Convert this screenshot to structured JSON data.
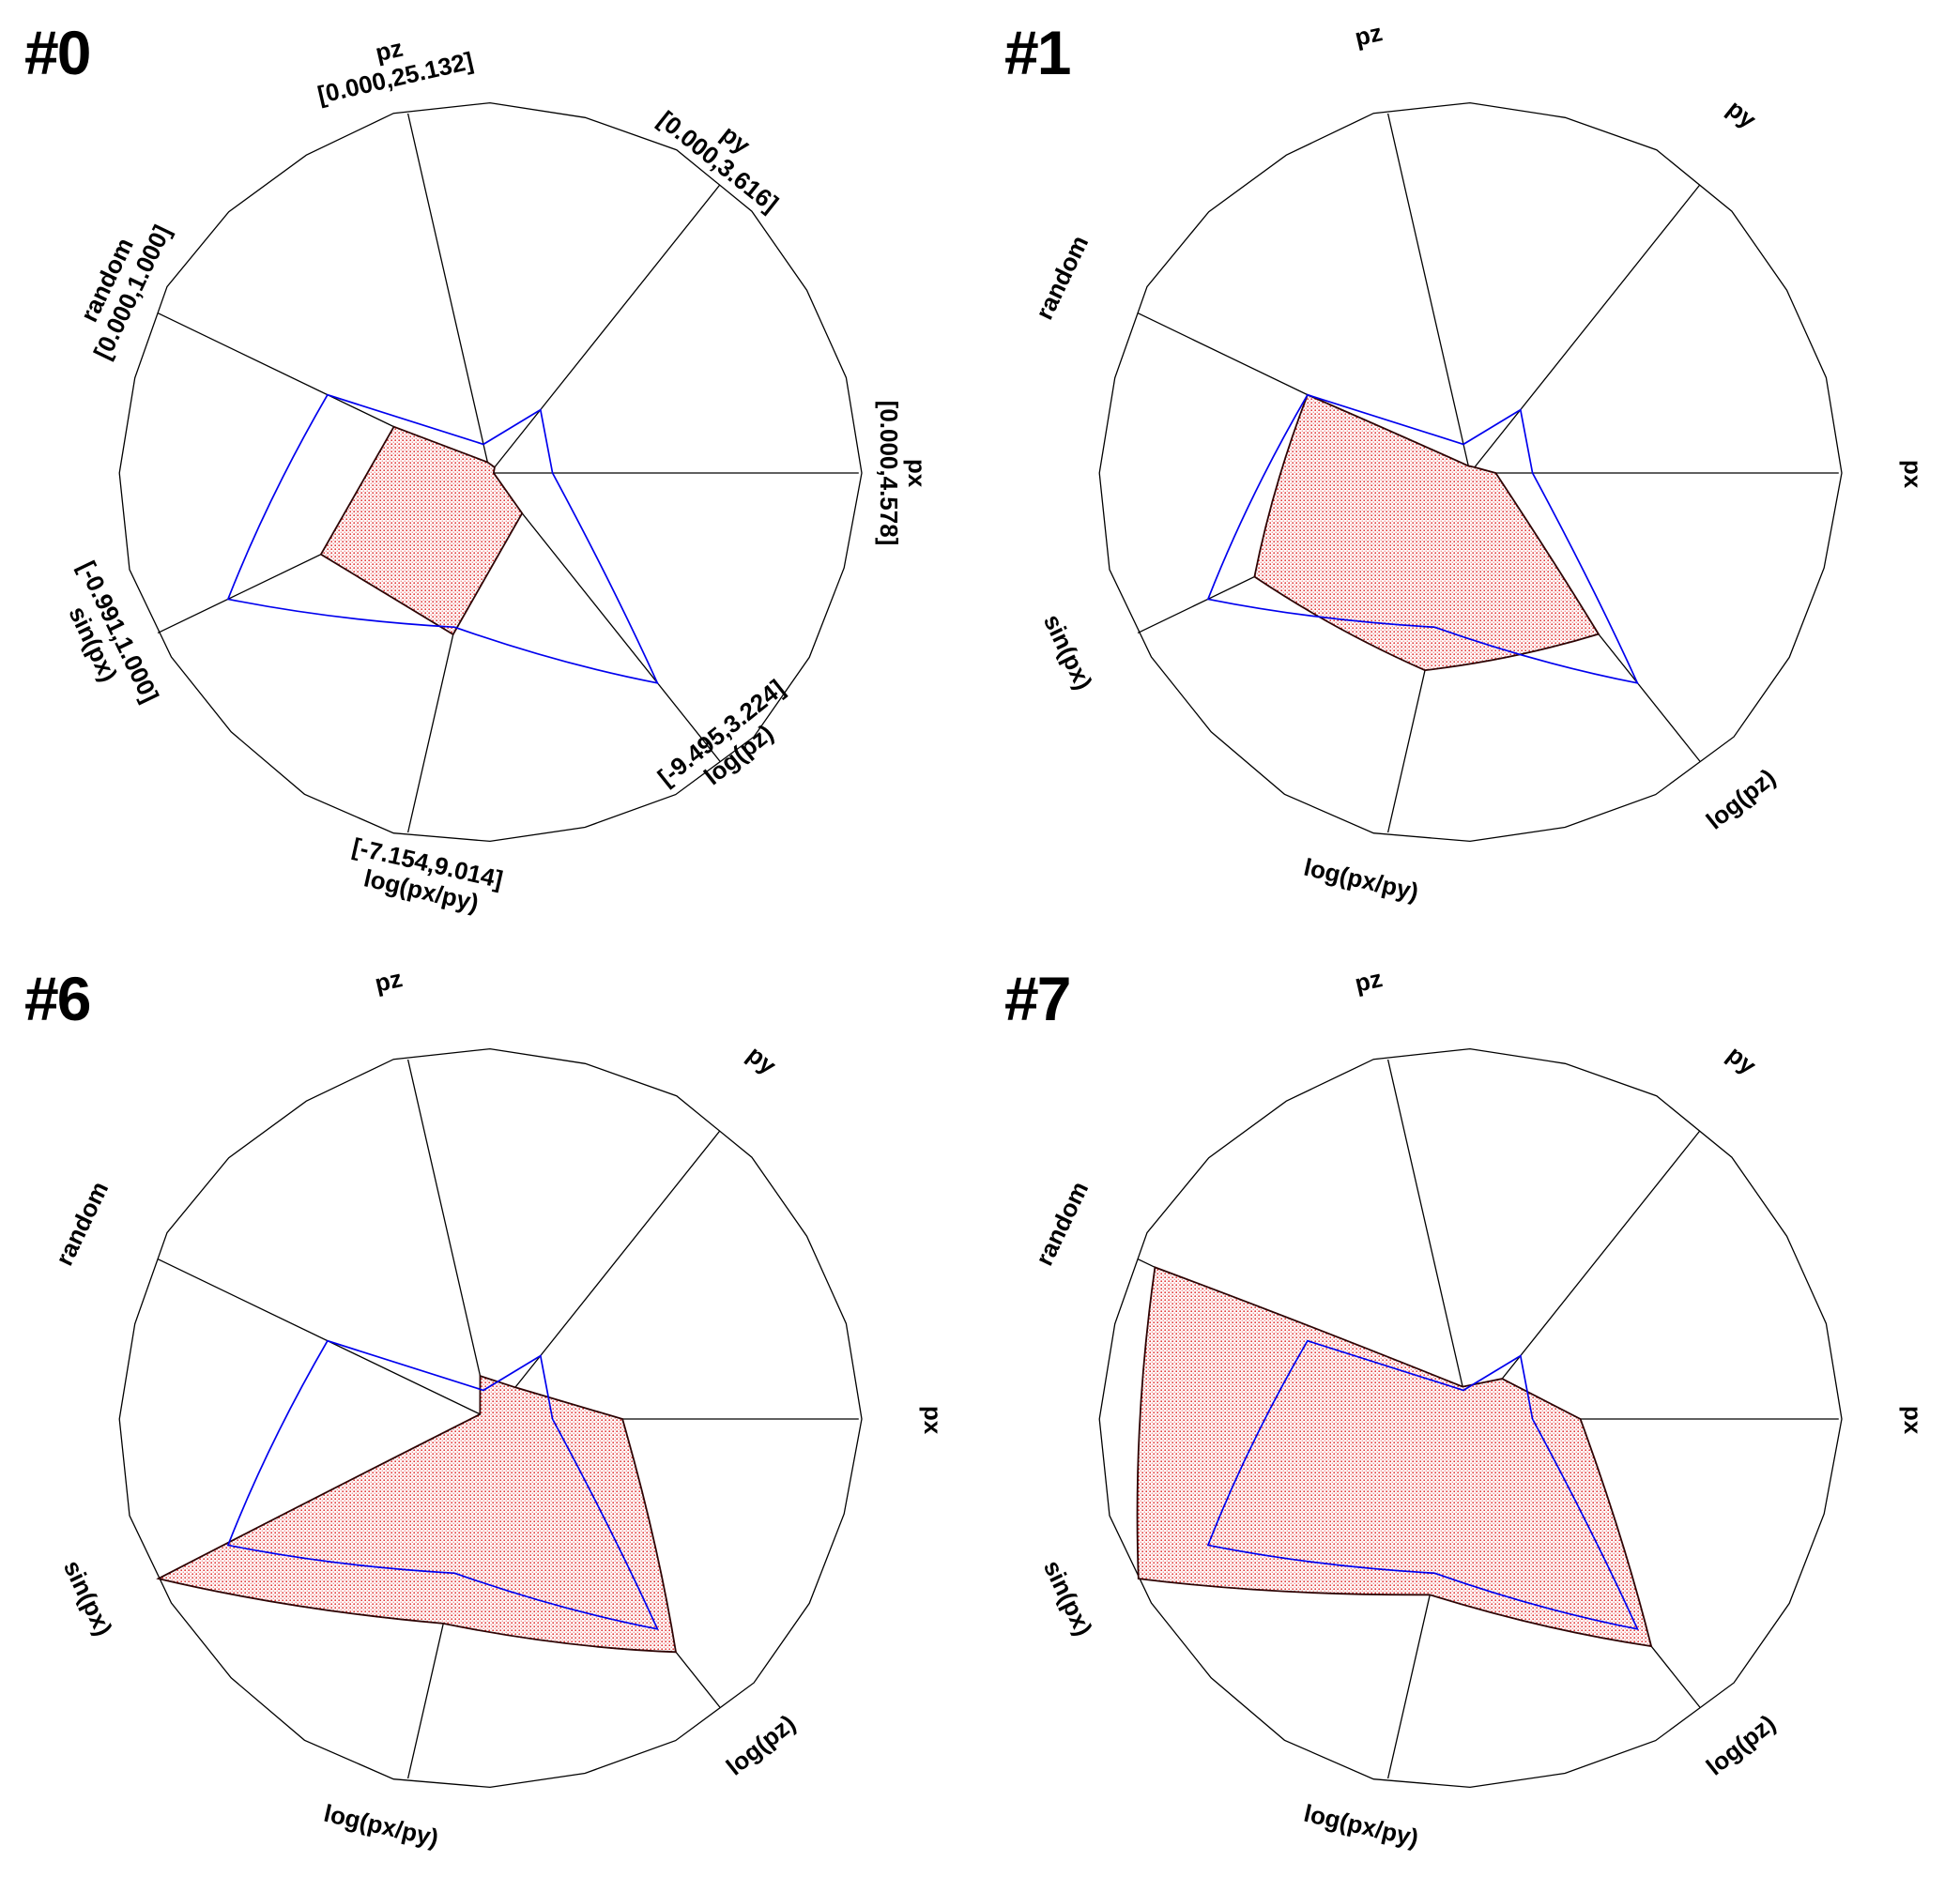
{
  "chart_data": {
    "type": "radar",
    "variant": "ROOT TSpider event display, 2x2 grid of spider plots",
    "grid": {
      "rows": 2,
      "cols": 2
    },
    "axes": [
      {
        "id": "px",
        "label": "px",
        "range": "[0.000,4.578]",
        "angle_deg": 0
      },
      {
        "id": "py",
        "label": "py",
        "range": "[0.000,3.616]",
        "angle_deg": 51.43
      },
      {
        "id": "pz",
        "label": "pz",
        "range": "[0.000,25.132]",
        "angle_deg": 102.86
      },
      {
        "id": "random",
        "label": "random",
        "range": "[0.000,1.000]",
        "angle_deg": 154.29
      },
      {
        "id": "sin_px",
        "label": "sin(px)",
        "range": "[-0.991,1.000]",
        "angle_deg": 205.71
      },
      {
        "id": "log_px_py",
        "label": "log(px/py)",
        "range": "[-7.154,9.014]",
        "angle_deg": 257.14
      },
      {
        "id": "log_pz",
        "label": "log(pz)",
        "range": "[-9.495,3.224]",
        "angle_deg": 308.57
      }
    ],
    "values_are": "fraction of axis range (0 = axis minimum at center, 1 = axis maximum at outer circle)",
    "average_series": {
      "name": "average (blue outline)",
      "color": "#0000ee",
      "values": [
        0.17,
        0.22,
        0.08,
        0.49,
        0.79,
        0.43,
        0.73
      ]
    },
    "panels": [
      {
        "title": "#0",
        "show_ranges": true,
        "entry_values": [
          0.01,
          0.02,
          0.03,
          0.29,
          0.51,
          0.45,
          0.14
        ]
      },
      {
        "title": "#1",
        "show_ranges": false,
        "entry_values": [
          0.07,
          0.02,
          0.02,
          0.49,
          0.65,
          0.55,
          0.56
        ]
      },
      {
        "title": "#6",
        "show_ranges": false,
        "entry_values": [
          0.36,
          0.11,
          0.12,
          0.03,
          1.0,
          0.57,
          0.81
        ]
      },
      {
        "title": "#7",
        "show_ranges": false,
        "entry_values": [
          0.3,
          0.14,
          0.09,
          0.95,
          1.0,
          0.49,
          0.79
        ]
      }
    ],
    "legend_position": "none",
    "grid_lines": "radial axes only, irregular hand-drawn outer circle",
    "colors": {
      "outline": "#000000",
      "axis_line": "#000000",
      "average_stroke": "#0000ee",
      "entry_stroke": "#2e0404",
      "entry_dot_fill": "#e03030",
      "text": "#000000",
      "background": "#ffffff"
    }
  }
}
